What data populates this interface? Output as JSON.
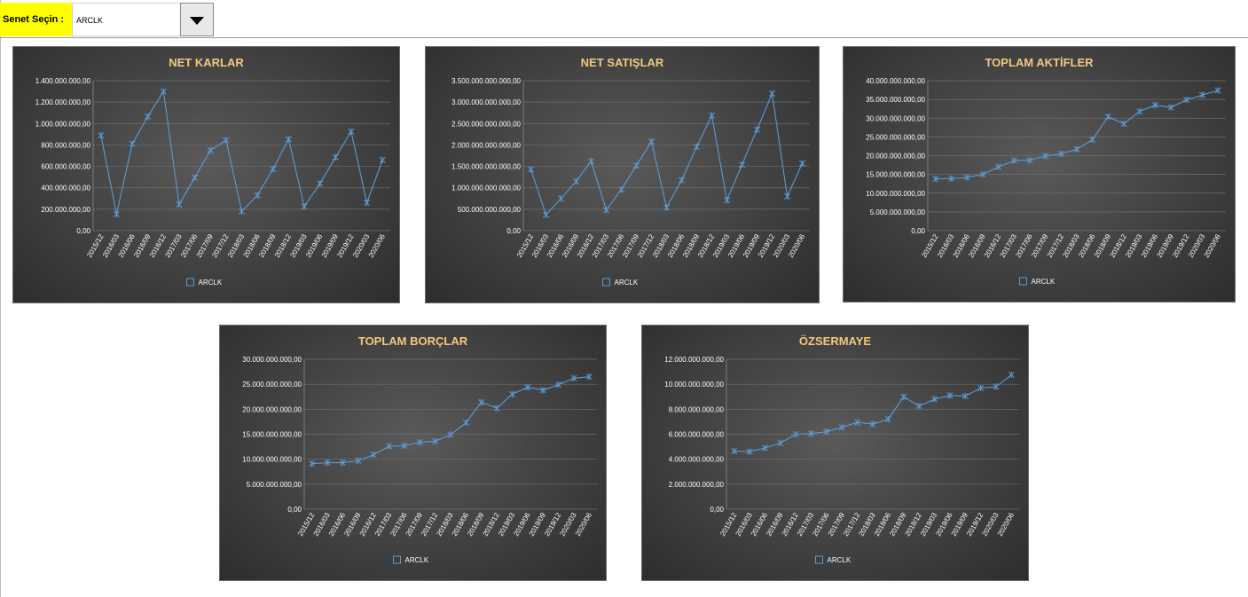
{
  "selector": {
    "label": "Senet Seçin :",
    "value": "ARCLK"
  },
  "theme": {
    "line_color": "#5b9bd5",
    "title_color": "#f2c97d",
    "label_highlight": "#ffff00"
  },
  "chart_data": [
    {
      "type": "line",
      "title": "NET KARLAR",
      "x": [
        "2015/12",
        "2016/03",
        "2016/06",
        "2016/09",
        "2016/12",
        "2017/03",
        "2017/06",
        "2017/09",
        "2017/12",
        "2018/03",
        "2018/06",
        "2018/09",
        "2018/12",
        "2019/03",
        "2019/06",
        "2019/09",
        "2019/12",
        "2020/03",
        "2020/06"
      ],
      "series": [
        {
          "name": "ARCLK",
          "values": [
            890000000,
            155000000,
            810000000,
            1065000000,
            1300000000,
            245000000,
            495000000,
            750000000,
            845000000,
            180000000,
            330000000,
            575000000,
            855000000,
            225000000,
            440000000,
            685000000,
            925000000,
            260000000,
            660000000
          ]
        }
      ],
      "ylim": [
        0,
        1400000000
      ],
      "yticks": [
        "0,00",
        "200.000.000,00",
        "400.000.000,00",
        "600.000.000,00",
        "800.000.000,00",
        "1.000.000.000,00",
        "1.200.000.000,00",
        "1.400.000.000,00"
      ],
      "legend": "bottom",
      "grid": true
    },
    {
      "type": "line",
      "title": "NET SATIŞLAR",
      "x": [
        "2015/12",
        "2016/03",
        "2016/06",
        "2016/09",
        "2016/12",
        "2017/03",
        "2017/06",
        "2017/09",
        "2017/12",
        "2018/03",
        "2018/06",
        "2018/09",
        "2018/12",
        "2019/03",
        "2019/06",
        "2019/09",
        "2019/12",
        "2020/03",
        "2020/06"
      ],
      "series": [
        {
          "name": "ARCLK",
          "values": [
            1430000000000,
            370000000000,
            750000000000,
            1150000000000,
            1620000000000,
            480000000000,
            960000000000,
            1520000000000,
            2080000000000,
            540000000000,
            1180000000000,
            1960000000000,
            2690000000000,
            710000000000,
            1540000000000,
            2360000000000,
            3200000000000,
            800000000000,
            1570000000000
          ]
        }
      ],
      "ylim": [
        0,
        3500000000000
      ],
      "yticks": [
        "0,00",
        "500.000.000.000,00",
        "1.000.000.000.000,00",
        "1.500.000.000.000,00",
        "2.000.000.000.000,00",
        "2.500.000.000.000,00",
        "3.000.000.000.000,00",
        "3.500.000.000.000,00"
      ],
      "legend": "bottom",
      "grid": true
    },
    {
      "type": "line",
      "title": "TOPLAM AKTİFLER",
      "x": [
        "2015/12",
        "2016/03",
        "2016/06",
        "2016/09",
        "2016/12",
        "2017/03",
        "2017/06",
        "2017/09",
        "2017/12",
        "2018/03",
        "2018/06",
        "2018/09",
        "2018/12",
        "2019/03",
        "2019/06",
        "2019/09",
        "2019/12",
        "2020/03",
        "2020/06"
      ],
      "series": [
        {
          "name": "ARCLK",
          "values": [
            13800000000,
            13900000000,
            14200000000,
            15000000000,
            17000000000,
            18700000000,
            18800000000,
            19900000000,
            20500000000,
            21700000000,
            24300000000,
            30400000000,
            28500000000,
            31800000000,
            33500000000,
            32900000000,
            34900000000,
            36200000000,
            37400000000
          ]
        }
      ],
      "ylim": [
        0,
        40000000000
      ],
      "yticks": [
        "0,00",
        "5.000.000.000,00",
        "10.000.000.000,00",
        "15.000.000.000,00",
        "20.000.000.000,00",
        "25.000.000.000,00",
        "30.000.000.000,00",
        "35.000.000.000,00",
        "40.000.000.000,00"
      ],
      "legend": "bottom",
      "grid": true
    },
    {
      "type": "line",
      "title": "TOPLAM BORÇLAR",
      "x": [
        "2015/12",
        "2016/03",
        "2016/06",
        "2016/09",
        "2016/12",
        "2017/03",
        "2017/06",
        "2017/09",
        "2017/12",
        "2018/03",
        "2018/06",
        "2018/09",
        "2018/12",
        "2019/03",
        "2019/06",
        "2019/09",
        "2019/12",
        "2020/03",
        "2020/06"
      ],
      "series": [
        {
          "name": "ARCLK",
          "values": [
            9100000000,
            9300000000,
            9300000000,
            9700000000,
            10900000000,
            12600000000,
            12700000000,
            13400000000,
            13600000000,
            14900000000,
            17300000000,
            21400000000,
            20200000000,
            23000000000,
            24400000000,
            23800000000,
            24900000000,
            26200000000,
            26500000000
          ]
        }
      ],
      "ylim": [
        0,
        30000000000
      ],
      "yticks": [
        "0,00",
        "5.000.000.000,00",
        "10.000.000.000,00",
        "15.000.000.000,00",
        "20.000.000.000,00",
        "25.000.000.000,00",
        "30.000.000.000,00"
      ],
      "legend": "bottom",
      "grid": true
    },
    {
      "type": "line",
      "title": "ÖZSERMAYE",
      "x": [
        "2015/12",
        "2016/03",
        "2016/06",
        "2016/09",
        "2016/12",
        "2017/03",
        "2017/06",
        "2017/09",
        "2017/12",
        "2018/03",
        "2018/06",
        "2018/09",
        "2018/12",
        "2019/03",
        "2019/06",
        "2019/09",
        "2019/12",
        "2020/03",
        "2020/06"
      ],
      "series": [
        {
          "name": "ARCLK",
          "values": [
            4650000000,
            4600000000,
            4900000000,
            5300000000,
            6000000000,
            6050000000,
            6200000000,
            6550000000,
            6950000000,
            6800000000,
            7200000000,
            9000000000,
            8250000000,
            8800000000,
            9100000000,
            9050000000,
            9700000000,
            9800000000,
            10750000000
          ]
        }
      ],
      "ylim": [
        0,
        12000000000
      ],
      "yticks": [
        "0,00",
        "2.000.000.000,00",
        "4.000.000.000,00",
        "6.000.000.000,00",
        "8.000.000.000,00",
        "10.000.000.000,00",
        "12.000.000.000,00"
      ],
      "legend": "bottom",
      "grid": true
    }
  ]
}
